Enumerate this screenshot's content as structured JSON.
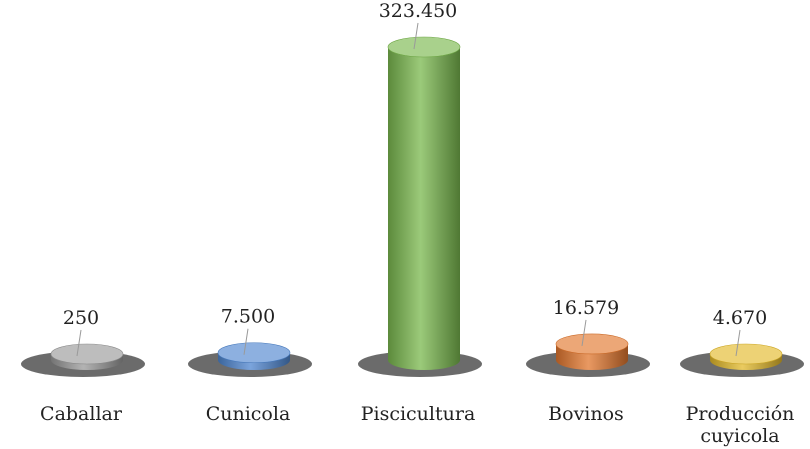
{
  "chart_data": {
    "type": "bar",
    "style": "3d-cylinder",
    "title": "",
    "xlabel": "",
    "ylabel": "",
    "grid": false,
    "legend": "none",
    "categories": [
      "Caballar",
      "Cunicola",
      "Piscicultura",
      "Bovinos",
      "Producción cuyicola"
    ],
    "category_lines": [
      [
        "Caballar"
      ],
      [
        "Cunicola"
      ],
      [
        "Piscicultura"
      ],
      [
        "Bovinos"
      ],
      [
        "Producción",
        "cuyicola"
      ]
    ],
    "values": [
      250,
      7500,
      323450,
      16579,
      4670
    ],
    "value_labels": [
      "250",
      "7.500",
      "323.450",
      "16.579",
      "4.670"
    ],
    "colors": [
      "#9a9a9a",
      "#4f86d0",
      "#7ab84e",
      "#e2772e",
      "#e3b92b"
    ],
    "ylim": [
      0,
      323450
    ]
  }
}
